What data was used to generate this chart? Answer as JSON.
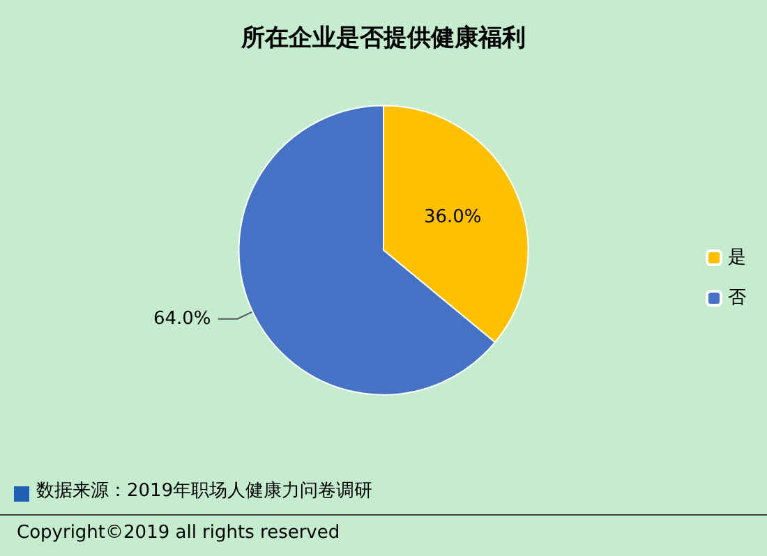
{
  "chart_data": {
    "type": "pie",
    "title": "所在企业是否提供健康福利",
    "categories": [
      "是",
      "否"
    ],
    "values": [
      36.0,
      64.0
    ],
    "colors": [
      "#ffc000",
      "#4472c4"
    ],
    "value_labels": [
      "36.0%",
      "64.0%"
    ],
    "legend": "right",
    "annotations": [
      "数据来源：2019年职场人健康力问卷调研",
      "Copyright©2019 all rights reserved"
    ]
  }
}
